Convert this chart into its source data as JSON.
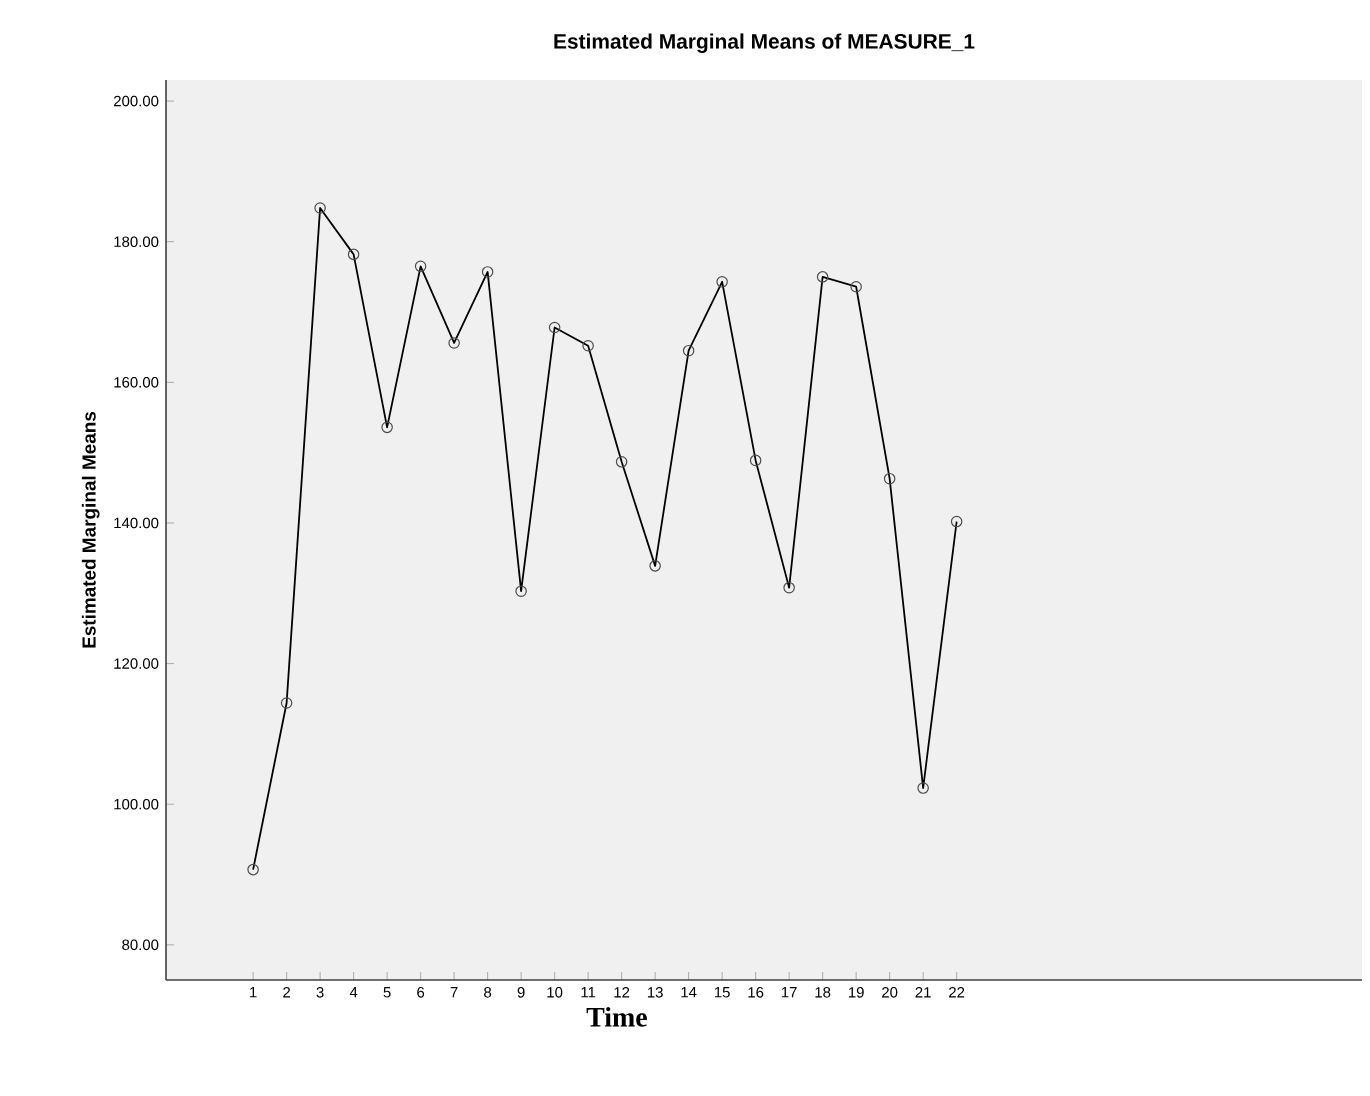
{
  "chart_data": {
    "type": "line",
    "title": "Estimated Marginal Means of MEASURE_1",
    "xlabel": "Time",
    "ylabel": "Estimated Marginal Means",
    "categories": [
      "1",
      "2",
      "3",
      "4",
      "5",
      "6",
      "7",
      "8",
      "9",
      "10",
      "11",
      "12",
      "13",
      "14",
      "15",
      "16",
      "17",
      "18",
      "19",
      "20",
      "21",
      "22"
    ],
    "series": [
      {
        "color": "#000000",
        "values": [
          90.7,
          114.4,
          184.8,
          178.2,
          153.6,
          176.5,
          165.6,
          175.7,
          130.3,
          167.8,
          165.2,
          148.7,
          133.9,
          164.5,
          174.3,
          148.9,
          130.8,
          175.0,
          173.6,
          146.3,
          102.3,
          140.2
        ]
      }
    ],
    "ylim": [
      75,
      203
    ],
    "yticks": [
      {
        "value": 80,
        "label": "80.00"
      },
      {
        "value": 100,
        "label": "100.00"
      },
      {
        "value": 120,
        "label": "120.00"
      },
      {
        "value": 140,
        "label": "140.00"
      },
      {
        "value": 160,
        "label": "160.00"
      },
      {
        "value": 180,
        "label": "180.00"
      },
      {
        "value": 200,
        "label": "200.00"
      }
    ],
    "marker": "circle",
    "grid": false
  }
}
